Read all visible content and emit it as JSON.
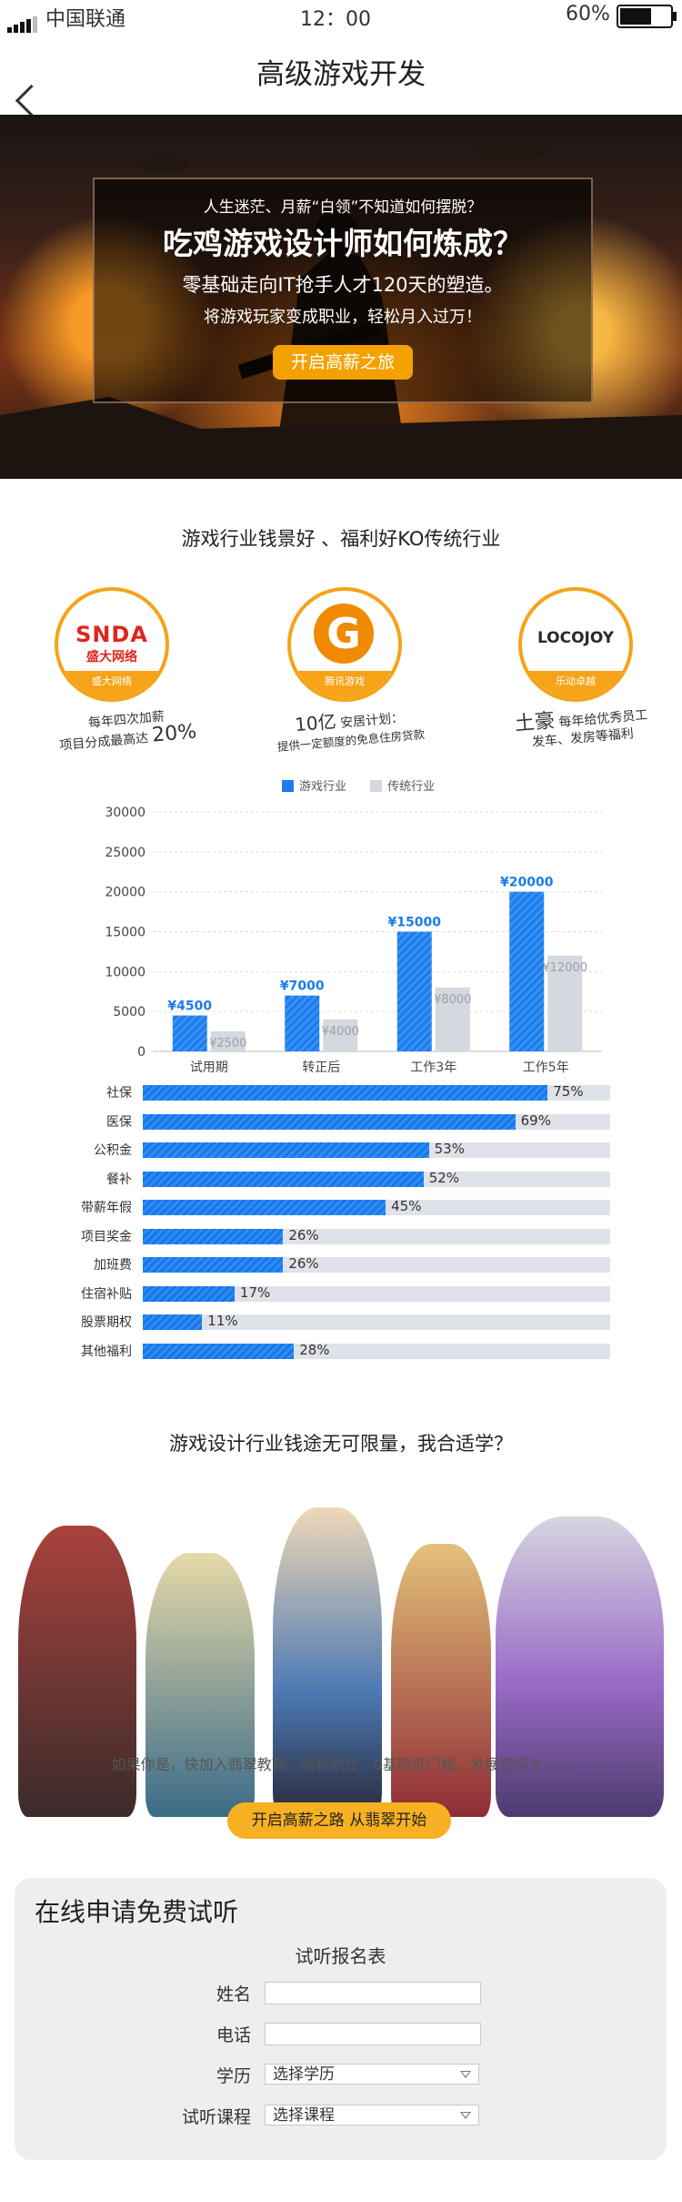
{
  "status": {
    "carrier": "中国联通",
    "time": "12：00",
    "battery": "60%"
  },
  "nav": {
    "title": "高级游戏开发"
  },
  "hero": {
    "line1": "人生迷茫、月薪“白领”不知道如何摆脱？",
    "line2": "吃鸡游戏设计师如何炼成？",
    "line3": "零基础走向IT抢手人才120天的塑造。",
    "line4": "将游戏玩家变成职业，轻松月入过万！",
    "button": "开启高薪之旅"
  },
  "section1": {
    "title": "游戏行业钱景好 、福利好KO传统行业"
  },
  "companies": [
    {
      "logo_text": "SNDA",
      "logo_sub": "盛大网络",
      "caption": "盛大网络",
      "desc1": "每年四次加薪",
      "desc2": "项目分成最高达",
      "highlight": "20%",
      "color": "#e0251b"
    },
    {
      "logo_text": "G",
      "caption": "腾讯游戏",
      "highlight": "10亿",
      "desc1": "安居计划：",
      "desc2": "提供一定额度的免息住房贷款",
      "color": "#f08a00"
    },
    {
      "logo_text": "LOCOJOY",
      "caption": "乐动卓越",
      "highlight": "土豪",
      "desc1": "每年给优秀员工",
      "desc2": "发车、发房等福利",
      "color": "#2a2a2a"
    }
  ],
  "chart_data": {
    "type": "bar",
    "categories": [
      "试用期",
      "转正后",
      "工作3年",
      "工作5年"
    ],
    "series": [
      {
        "name": "游戏行业",
        "values": [
          4500,
          7000,
          15000,
          20000
        ],
        "labels": [
          "¥4500",
          "¥7000",
          "¥15000",
          "¥20000"
        ],
        "color": "#1a7cec"
      },
      {
        "name": "传统行业",
        "values": [
          2500,
          4000,
          8000,
          12000
        ],
        "labels": [
          "¥2500",
          "¥4000",
          "¥8000",
          "¥12000"
        ],
        "color": "#d4d8df"
      }
    ],
    "ylim": [
      0,
      30000
    ],
    "yticks": [
      0,
      5000,
      10000,
      15000,
      20000,
      25000,
      30000
    ],
    "grid": true,
    "legend_position": "top"
  },
  "benefits": [
    {
      "label": "社保",
      "value": 75,
      "pct": "75%"
    },
    {
      "label": "医保",
      "value": 69,
      "pct": "69%"
    },
    {
      "label": "公积金",
      "value": 53,
      "pct": "53%"
    },
    {
      "label": "餐补",
      "value": 52,
      "pct": "52%"
    },
    {
      "label": "带薪年假",
      "value": 45,
      "pct": "45%"
    },
    {
      "label": "项目奖金",
      "value": 26,
      "pct": "26%"
    },
    {
      "label": "加班费",
      "value": 26,
      "pct": "26%"
    },
    {
      "label": "住宿补贴",
      "value": 17,
      "pct": "17%"
    },
    {
      "label": "股票期权",
      "value": 11,
      "pct": "11%"
    },
    {
      "label": "其他福利",
      "value": 28,
      "pct": "28%"
    }
  ],
  "section2": {
    "title": "游戏设计行业钱途无可限量，我合适学？",
    "subtitle": "如果你是，快加入翡翠教育。高薪职业、0基础低门槛、发展空间大......",
    "button": "开启高薪之路  从翡翠开始"
  },
  "form": {
    "title": "在线申请免费试听",
    "subtitle": "试听报名表",
    "name_label": "姓名",
    "phone_label": "电话",
    "edu_label": "学历",
    "edu_value": "选择学历",
    "course_label": "试听课程",
    "course_value": "选择课程"
  }
}
